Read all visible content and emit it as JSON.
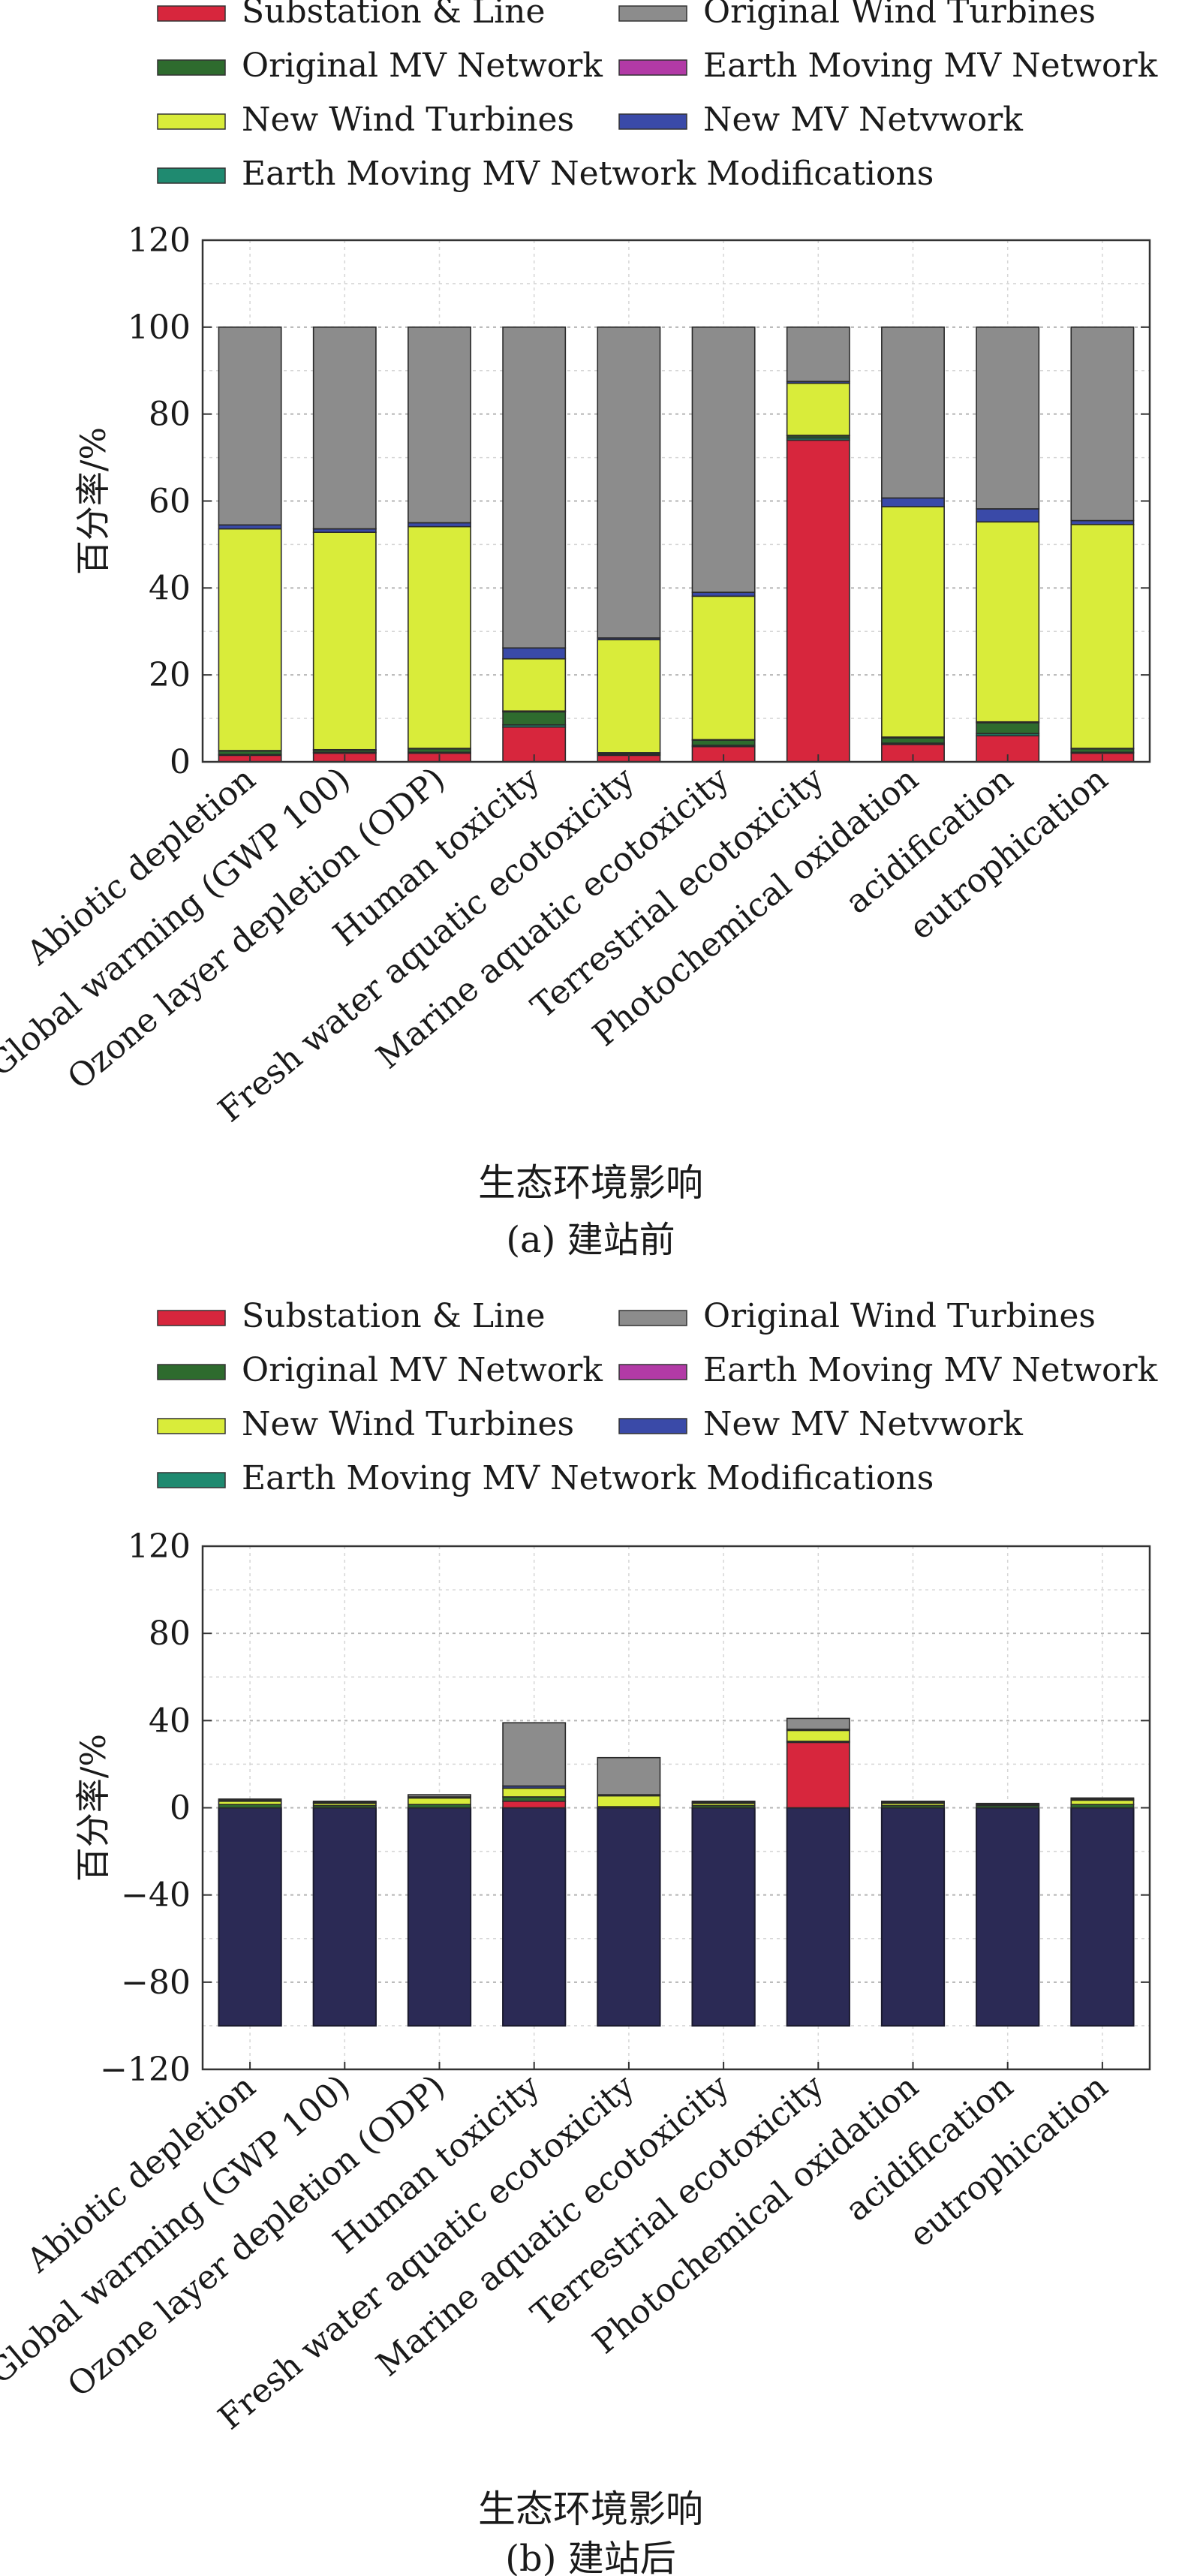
{
  "series_colors": {
    "Substation & Line": "#d7263d",
    "Original Wind Turbines": "#8c8c8c",
    "Original MV Network": "#2e6b2e",
    "Earth Moving MV Network": "#b23aa6",
    "New Wind Turbines": "#d9ec3a",
    "New MV Netvwork": "#3a4aa8",
    "Earth Moving MV Network Modifications": "#1f8a70",
    "negative": "#2b2a55"
  },
  "chart_data": [
    {
      "type": "bar",
      "stacked": true,
      "caption": "(a) 建站前",
      "xlabel": "生态环境影响",
      "ylabel": "百分率/%",
      "ylim": [
        0,
        120
      ],
      "yticks": [
        0,
        20,
        40,
        60,
        80,
        100,
        120
      ],
      "grid": true,
      "legend": "top",
      "categories": [
        "Abiotic depletion",
        "Global warming (GWP 100)",
        "Ozone layer depletion (ODP)",
        "Human toxicity",
        "Fresh water aquatic ecotoxicity",
        "Marine aquatic ecotoxicity",
        "Terrestrial ecotoxicity",
        "Photochemical oxidation",
        "acidification",
        "eutrophication"
      ],
      "series": [
        {
          "name": "Substation & Line",
          "values": [
            1.5,
            2,
            2,
            8,
            1.5,
            3.5,
            74,
            4,
            6,
            2
          ]
        },
        {
          "name": "Earth Moving MV Network Modifications",
          "values": [
            0.2,
            0.2,
            0.2,
            0.5,
            0.2,
            0.3,
            0.5,
            0.3,
            0.5,
            0.2
          ]
        },
        {
          "name": "Original MV Network",
          "values": [
            0.8,
            0.5,
            0.8,
            3,
            0.3,
            1.2,
            0.5,
            1.2,
            2.5,
            0.8
          ]
        },
        {
          "name": "Earth Moving MV Network",
          "values": [
            0.1,
            0.1,
            0.1,
            0.2,
            0.1,
            0.1,
            0.1,
            0.2,
            0.2,
            0.1
          ]
        },
        {
          "name": "New Wind Turbines",
          "values": [
            51,
            50,
            51,
            12,
            26,
            33,
            12,
            53,
            46,
            51.5
          ]
        },
        {
          "name": "New MV Netvwork",
          "values": [
            0.9,
            0.8,
            0.9,
            2.5,
            0.4,
            0.9,
            0.4,
            2,
            3,
            0.9
          ]
        },
        {
          "name": "Original Wind Turbines",
          "values": [
            45.5,
            46.4,
            45,
            73.8,
            71.5,
            61,
            12.5,
            39.3,
            41.8,
            44.5
          ]
        }
      ]
    },
    {
      "type": "bar",
      "stacked": true,
      "caption": "(b) 建站后",
      "xlabel": "生态环境影响",
      "ylabel": "百分率/%",
      "ylim": [
        -120,
        120
      ],
      "yticks": [
        -120,
        -80,
        -40,
        0,
        40,
        80,
        120
      ],
      "grid": true,
      "legend": "top",
      "categories": [
        "Abiotic depletion",
        "Global warming (GWP 100)",
        "Ozone layer depletion (ODP)",
        "Human toxicity",
        "Fresh water aquatic ecotoxicity",
        "Marine aquatic ecotoxicity",
        "Terrestrial ecotoxicity",
        "Photochemical oxidation",
        "acidification",
        "eutrophication"
      ],
      "negative": [
        -100,
        -100,
        -100,
        -100,
        -100,
        -100,
        -100,
        -100,
        -100,
        -100
      ],
      "series": [
        {
          "name": "Substation & Line",
          "values": [
            0,
            0,
            0,
            3,
            0,
            0,
            30,
            0,
            0,
            0
          ]
        },
        {
          "name": "Earth Moving MV Network Modifications",
          "values": [
            0,
            0,
            0,
            0,
            0,
            0,
            0,
            0,
            0,
            0
          ]
        },
        {
          "name": "Original MV Network",
          "values": [
            1.5,
            1,
            1.5,
            2,
            0.5,
            1,
            0.5,
            1,
            1,
            1.5
          ]
        },
        {
          "name": "Earth Moving MV Network",
          "values": [
            0,
            0,
            0,
            0,
            0,
            0,
            0,
            0,
            0,
            0
          ]
        },
        {
          "name": "New Wind Turbines",
          "values": [
            1.5,
            1,
            3,
            4,
            5,
            1,
            5,
            1,
            0.5,
            2
          ]
        },
        {
          "name": "New MV Netvwork",
          "values": [
            0.5,
            0.5,
            0.5,
            1,
            0.5,
            0.5,
            0.5,
            0.5,
            0.5,
            0.5
          ]
        },
        {
          "name": "Original Wind Turbines",
          "values": [
            0.5,
            0.5,
            1,
            29,
            17,
            0.5,
            5,
            0.5,
            0,
            0.5
          ]
        }
      ]
    }
  ]
}
